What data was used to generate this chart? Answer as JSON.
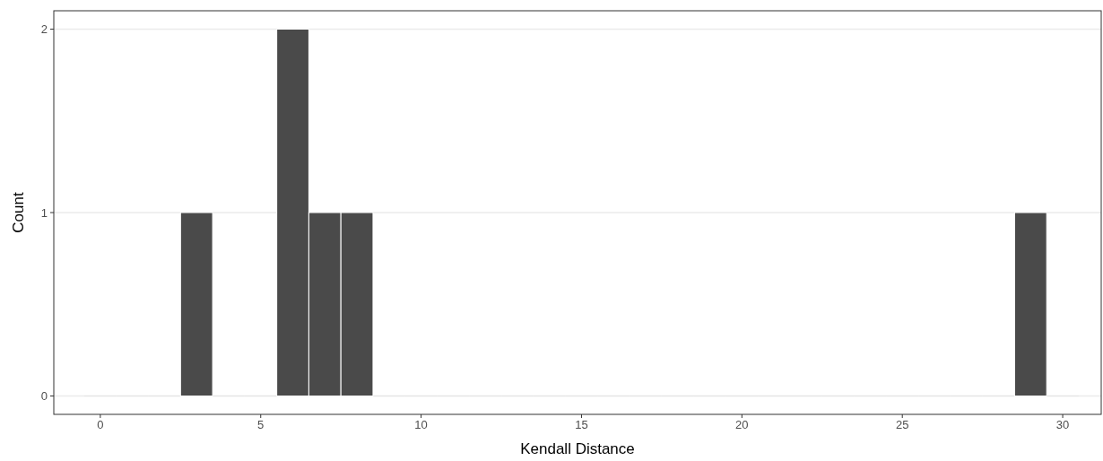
{
  "chart_data": {
    "type": "histogram",
    "xlabel": "Kendall Distance",
    "ylabel": "Count",
    "bins": [
      -0.5,
      0.5,
      1.5,
      2.5,
      3.5,
      4.5,
      5.5,
      6.5,
      7.5,
      8.5,
      9.5,
      10.5,
      11.5,
      12.5,
      13.5,
      14.5,
      15.5,
      16.5,
      17.5,
      18.5,
      19.5,
      20.5,
      21.5,
      22.5,
      23.5,
      24.5,
      25.5,
      26.5,
      27.5,
      28.5,
      29.5,
      30.5
    ],
    "values": [
      0,
      0,
      0,
      1,
      0,
      0,
      2,
      1,
      1,
      0,
      0,
      0,
      0,
      0,
      0,
      0,
      0,
      0,
      0,
      0,
      0,
      0,
      0,
      0,
      0,
      0,
      0,
      0,
      0,
      1,
      0
    ],
    "color": "#4a4a4a",
    "xlim": [
      -1.45,
      31.2
    ],
    "xticks": [
      0,
      5,
      10,
      15,
      20,
      25,
      30
    ],
    "ylim": [
      -0.1,
      2.1
    ],
    "yticks": [
      0,
      1,
      2
    ],
    "grid": "y"
  }
}
